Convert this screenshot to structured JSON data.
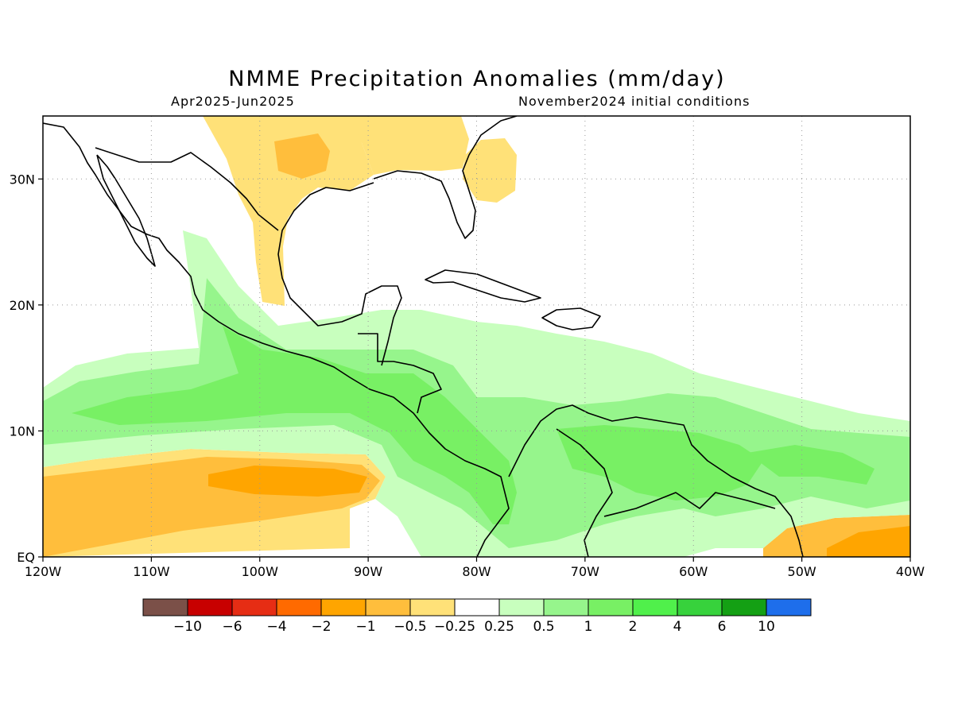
{
  "title": "NMME Precipitation Anomalies (mm/day)",
  "season": "Apr2025-Jun2025",
  "initial_conditions": "November2024 initial conditions",
  "map": {
    "lon_range": [
      -120,
      -40
    ],
    "lat_range": [
      0,
      35
    ],
    "lon_labels": [
      {
        "lon": -120,
        "label": "120W"
      },
      {
        "lon": -110,
        "label": "110W"
      },
      {
        "lon": -100,
        "label": "100W"
      },
      {
        "lon": -90,
        "label": "90W"
      },
      {
        "lon": -80,
        "label": "80W"
      },
      {
        "lon": -70,
        "label": "70W"
      },
      {
        "lon": -60,
        "label": "60W"
      },
      {
        "lon": -50,
        "label": "50W"
      },
      {
        "lon": -40,
        "label": "40W"
      }
    ],
    "lat_labels": [
      {
        "lat": 30,
        "label": "30N"
      },
      {
        "lat": 20,
        "label": "20N"
      },
      {
        "lat": 10,
        "label": "10N"
      },
      {
        "lat": 0,
        "label": "EQ"
      }
    ],
    "grid": true
  },
  "colorbar": {
    "colors": [
      "#7b5048",
      "#c80000",
      "#e62d14",
      "#ff6a00",
      "#ffa500",
      "#ffbe3c",
      "#ffe178",
      "#ffffff",
      "#c8ffbe",
      "#96f58c",
      "#78f064",
      "#50f04b",
      "#37d23c",
      "#14a014",
      "#1e6eeb"
    ],
    "labels": [
      "-10",
      "-6",
      "-4",
      "-2",
      "-1",
      "-0.5",
      "-0.25",
      "0.25",
      "0.5",
      "1",
      "2",
      "4",
      "6",
      "10"
    ]
  }
}
